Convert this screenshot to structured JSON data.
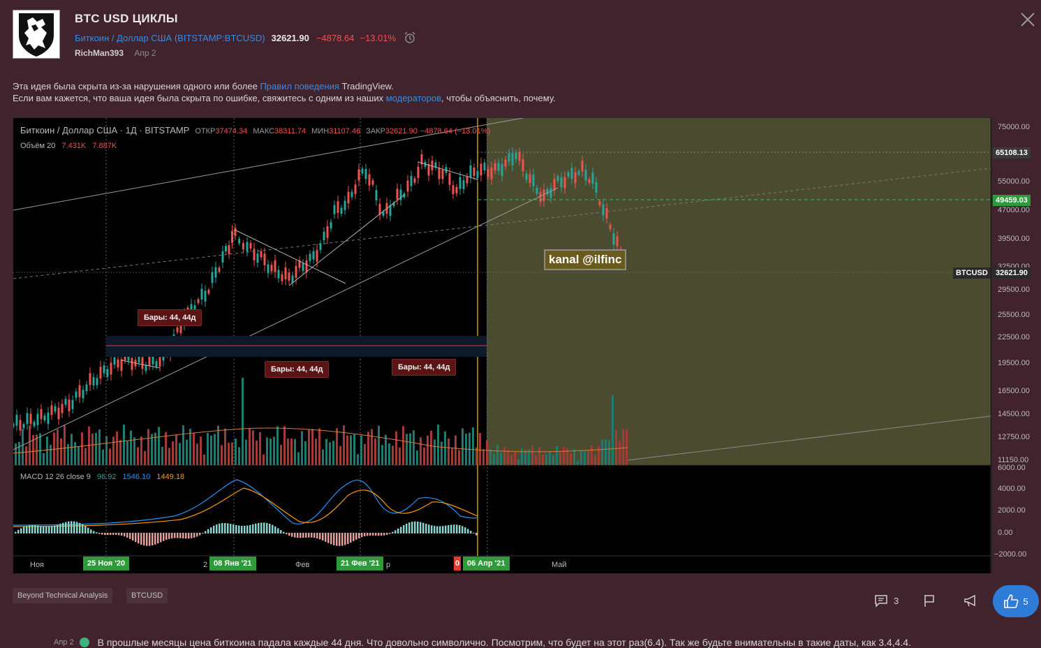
{
  "header": {
    "title": "BTC USD ЦИКЛЫ",
    "symbol_name": "Биткоин / Доллар США",
    "symbol_code": "BITSTAMP:BTCUSD",
    "price": "32621.90",
    "change": "−4878.64",
    "change_pct": "−13.01%",
    "author": "RichMan393",
    "date": "Апр 2",
    "icons": [
      "logo-lion-icon",
      "alarm-clock-icon",
      "close-icon"
    ]
  },
  "notice": {
    "line1_pre": "Эта идея была скрыта из-за нарушения одного или более ",
    "line1_link": "Правил поведения",
    "line1_post": " TradingView.",
    "line2_pre": "Если вам кажется, что ваша идея была скрыта по ошибке, свяжитесь с одним из наших ",
    "line2_link": "модераторов",
    "line2_post": ", чтобы объяснить, почему."
  },
  "chart": {
    "legend_title": "Биткоин / Доллар США · 1Д · BITSTAMP",
    "open_k": "ОТКР",
    "open_v": "37474.34",
    "high_k": "МАКС",
    "high_v": "38311.74",
    "low_k": "МИН",
    "low_v": "31107.46",
    "close_k": "ЗАКР",
    "close_v": "32621.90",
    "close_chg": "−4878.64 (−13.01%)",
    "volume_k": "Объём 20",
    "volume_v1": "7.431K",
    "volume_v2": "7.887K",
    "macd_k": "MACD 12 26 close 9",
    "macd_v1": "96.92",
    "macd_v2": "1546.10",
    "macd_v3": "1449.18",
    "bars_labels": [
      "Бары: 44, 44д",
      "Бары: 44, 44д",
      "Бары: 44, 44д"
    ],
    "watermark": "kanal @ilfinc",
    "y_labels": [
      "75000.00",
      "65108.13",
      "55000.00",
      "49459.03",
      "47000.00",
      "39500.00",
      "32500.00",
      "32621.90",
      "29500.00",
      "25500.00",
      "22500.00",
      "19500.00",
      "16500.00",
      "14500.00",
      "12750.00",
      "11150.00"
    ],
    "symbol_badge": "BTCUSD",
    "macd_y_labels": [
      "6000.00",
      "4000.00",
      "2000.00",
      "0.00",
      "−2000.00"
    ],
    "x_labels": [
      "Ноя",
      "2",
      "Фев",
      "р",
      "Май"
    ],
    "x_badges": [
      "25 Ноя '20",
      "08 Янв '21",
      "21 Фев '21",
      "06 Апр '21"
    ],
    "x_red_badge": "0"
  },
  "footer": {
    "tags": [
      "Beyond Technical Analysis",
      "BTCUSD"
    ],
    "comments_count": "3",
    "likes": "5",
    "comment_date": "Апр 2",
    "comment_text": "В прошлые месяцы цена биткоина падала каждые 44 дня. Что довольно символично. Посмотрим, что будет на этот раз(6.4). Так же будьте внимательны в такие даты, как 3.4,4.4."
  },
  "colors": {
    "background": "#40232d",
    "link": "#3a8ae0",
    "up": "#26a69a",
    "down": "#ef5350",
    "like": "#2f7bd8",
    "future_zone": "#4a4a2e"
  }
}
